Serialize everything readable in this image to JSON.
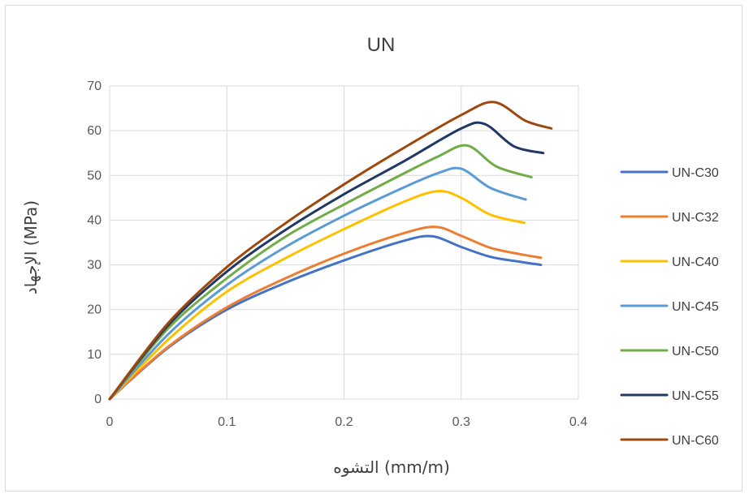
{
  "chart_data": {
    "type": "line",
    "title": "UN",
    "xlabel": "التشوه  (mm/m)",
    "ylabel": "الإجهاد (MPa)",
    "xlim": [
      0,
      0.4
    ],
    "ylim": [
      0,
      70
    ],
    "xticks": [
      "0",
      "0.1",
      "0.2",
      "0.3",
      "0.4"
    ],
    "yticks": [
      "0",
      "10",
      "20",
      "30",
      "40",
      "50",
      "60",
      "70"
    ],
    "grid": true,
    "legend_position": "right",
    "series": [
      {
        "name": "UN-C30",
        "color": "#4472C4",
        "x": [
          0,
          0.05,
          0.1,
          0.15,
          0.2,
          0.25,
          0.275,
          0.3,
          0.325,
          0.35,
          0.368
        ],
        "y": [
          0,
          11.5,
          20,
          26,
          31,
          35.3,
          36.4,
          34,
          31.8,
          30.7,
          30
        ]
      },
      {
        "name": "UN-C32",
        "color": "#ED7D31",
        "x": [
          0,
          0.05,
          0.1,
          0.15,
          0.2,
          0.25,
          0.278,
          0.3,
          0.325,
          0.35,
          0.368
        ],
        "y": [
          0,
          11.7,
          20.5,
          27,
          32.5,
          37,
          38.5,
          36.5,
          33.8,
          32.4,
          31.6
        ]
      },
      {
        "name": "UN-C40",
        "color": "#FFC000",
        "x": [
          0,
          0.05,
          0.1,
          0.15,
          0.2,
          0.25,
          0.28,
          0.3,
          0.325,
          0.354
        ],
        "y": [
          0,
          13.3,
          24,
          31.5,
          38,
          44,
          46.5,
          45,
          41.2,
          39.4
        ]
      },
      {
        "name": "UN-C45",
        "color": "#5B9BD5",
        "x": [
          0,
          0.05,
          0.1,
          0.15,
          0.2,
          0.25,
          0.28,
          0.3,
          0.325,
          0.355
        ],
        "y": [
          0,
          14.5,
          25.5,
          34,
          41,
          47.2,
          50.5,
          51.5,
          47.2,
          44.6
        ]
      },
      {
        "name": "UN-C50",
        "color": "#70AD47",
        "x": [
          0,
          0.05,
          0.1,
          0.15,
          0.2,
          0.25,
          0.28,
          0.305,
          0.33,
          0.36
        ],
        "y": [
          0,
          15.8,
          27,
          36.3,
          43.5,
          50.3,
          54.2,
          56.7,
          52,
          49.6
        ]
      },
      {
        "name": "UN-C55",
        "color": "#1F3864",
        "x": [
          0,
          0.05,
          0.1,
          0.15,
          0.2,
          0.25,
          0.3,
          0.32,
          0.345,
          0.37
        ],
        "y": [
          0,
          16.5,
          28.5,
          37.8,
          45.8,
          53,
          60.5,
          61.5,
          56.5,
          55
        ]
      },
      {
        "name": "UN-C60",
        "color": "#9E480E",
        "x": [
          0,
          0.05,
          0.1,
          0.15,
          0.2,
          0.25,
          0.3,
          0.328,
          0.355,
          0.377
        ],
        "y": [
          0,
          17,
          29.5,
          39.3,
          48,
          56,
          63.5,
          66.4,
          62.2,
          60.5
        ]
      }
    ]
  }
}
